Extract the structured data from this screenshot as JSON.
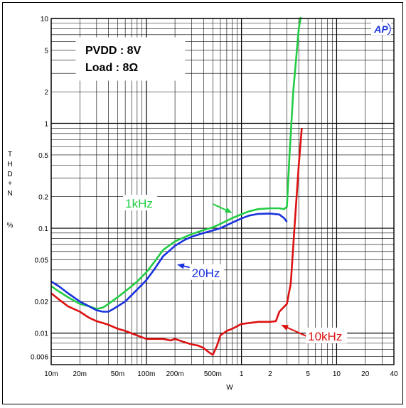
{
  "chart_data": {
    "type": "line",
    "title": "",
    "xlabel": "W",
    "ylabel": "T H D + N %",
    "x_scale": "log",
    "y_scale": "log",
    "xlim": [
      0.01,
      40
    ],
    "ylim": [
      0.005,
      10
    ],
    "grid": true,
    "x_ticks": [
      {
        "value": 0.01,
        "label": "10m"
      },
      {
        "value": 0.02,
        "label": "20m"
      },
      {
        "value": 0.05,
        "label": "50m"
      },
      {
        "value": 0.1,
        "label": "100m"
      },
      {
        "value": 0.2,
        "label": "200m"
      },
      {
        "value": 0.5,
        "label": "500m"
      },
      {
        "value": 1,
        "label": "1"
      },
      {
        "value": 2,
        "label": "2"
      },
      {
        "value": 5,
        "label": "5"
      },
      {
        "value": 10,
        "label": "10"
      },
      {
        "value": 20,
        "label": "20"
      },
      {
        "value": 40,
        "label": "40"
      }
    ],
    "y_ticks": [
      {
        "value": 10,
        "label": "10"
      },
      {
        "value": 5,
        "label": "5"
      },
      {
        "value": 2,
        "label": "2"
      },
      {
        "value": 1,
        "label": "1"
      },
      {
        "value": 0.5,
        "label": "0.5"
      },
      {
        "value": 0.2,
        "label": "0.2"
      },
      {
        "value": 0.1,
        "label": "0.1"
      },
      {
        "value": 0.05,
        "label": "0.05"
      },
      {
        "value": 0.02,
        "label": "0.02"
      },
      {
        "value": 0.01,
        "label": "0.01"
      },
      {
        "value": 0.006,
        "label": "0.006"
      }
    ],
    "info_box": [
      "PVDD : 8V",
      "Load : 8Ω"
    ],
    "logo": "AP",
    "series": [
      {
        "name": "1kHz",
        "color": "#22cc44",
        "x": [
          0.01,
          0.012,
          0.015,
          0.02,
          0.025,
          0.03,
          0.035,
          0.04,
          0.05,
          0.06,
          0.07,
          0.08,
          0.1,
          0.12,
          0.15,
          0.2,
          0.25,
          0.3,
          0.4,
          0.5,
          0.6,
          0.8,
          1.0,
          1.2,
          1.5,
          2.0,
          2.5,
          2.8,
          3.0,
          3.2,
          3.5,
          4.0,
          4.2
        ],
        "y": [
          0.028,
          0.025,
          0.022,
          0.019,
          0.018,
          0.017,
          0.0175,
          0.019,
          0.022,
          0.025,
          0.028,
          0.031,
          0.038,
          0.047,
          0.062,
          0.075,
          0.082,
          0.088,
          0.096,
          0.102,
          0.11,
          0.125,
          0.136,
          0.145,
          0.152,
          0.155,
          0.155,
          0.152,
          0.16,
          0.5,
          2.0,
          8.0,
          11.0
        ]
      },
      {
        "name": "20Hz",
        "color": "#1a33dd",
        "x": [
          0.01,
          0.012,
          0.015,
          0.02,
          0.025,
          0.03,
          0.035,
          0.04,
          0.045,
          0.05,
          0.06,
          0.07,
          0.08,
          0.1,
          0.12,
          0.15,
          0.2,
          0.25,
          0.3,
          0.4,
          0.5,
          0.6,
          0.8,
          1.0,
          1.2,
          1.5,
          2.0,
          2.5,
          2.8,
          3.0
        ],
        "y": [
          0.031,
          0.028,
          0.024,
          0.02,
          0.018,
          0.0165,
          0.016,
          0.016,
          0.017,
          0.018,
          0.02,
          0.023,
          0.026,
          0.032,
          0.04,
          0.054,
          0.068,
          0.077,
          0.083,
          0.09,
          0.095,
          0.1,
          0.113,
          0.124,
          0.132,
          0.137,
          0.138,
          0.135,
          0.125,
          0.115
        ]
      },
      {
        "name": "10kHz",
        "color": "#dd1111",
        "x": [
          0.01,
          0.012,
          0.015,
          0.02,
          0.025,
          0.03,
          0.04,
          0.05,
          0.06,
          0.08,
          0.1,
          0.12,
          0.15,
          0.18,
          0.2,
          0.25,
          0.3,
          0.35,
          0.4,
          0.45,
          0.5,
          0.55,
          0.6,
          0.7,
          0.8,
          1.0,
          1.5,
          2.0,
          2.3,
          2.5,
          3.0,
          3.3,
          3.6,
          4.0,
          4.3
        ],
        "y": [
          0.024,
          0.021,
          0.018,
          0.016,
          0.014,
          0.013,
          0.012,
          0.011,
          0.0105,
          0.0095,
          0.0088,
          0.0088,
          0.0088,
          0.0085,
          0.0088,
          0.0082,
          0.0078,
          0.0076,
          0.0072,
          0.0066,
          0.0062,
          0.0075,
          0.0095,
          0.0105,
          0.011,
          0.0122,
          0.0128,
          0.0128,
          0.013,
          0.016,
          0.019,
          0.03,
          0.1,
          0.4,
          0.9
        ]
      }
    ],
    "annotations": [
      {
        "text": "1kHz",
        "series": "1kHz",
        "color": "#22cc44",
        "text_at": [
          0.06,
          0.17
        ],
        "arrow_from": [
          0.5,
          0.17
        ],
        "arrow_to": [
          0.8,
          0.14
        ]
      },
      {
        "text": "20Hz",
        "series": "20Hz",
        "color": "#1a33dd",
        "text_at": [
          0.3,
          0.037
        ],
        "arrow_from": [
          0.55,
          0.037
        ],
        "arrow_to": [
          0.21,
          0.045
        ]
      },
      {
        "text": "10kHz",
        "series": "10kHz",
        "color": "#dd1111",
        "text_at": [
          5.0,
          0.0092
        ],
        "arrow_from": [
          5.0,
          0.0092
        ],
        "arrow_to": [
          2.6,
          0.012
        ]
      }
    ]
  }
}
